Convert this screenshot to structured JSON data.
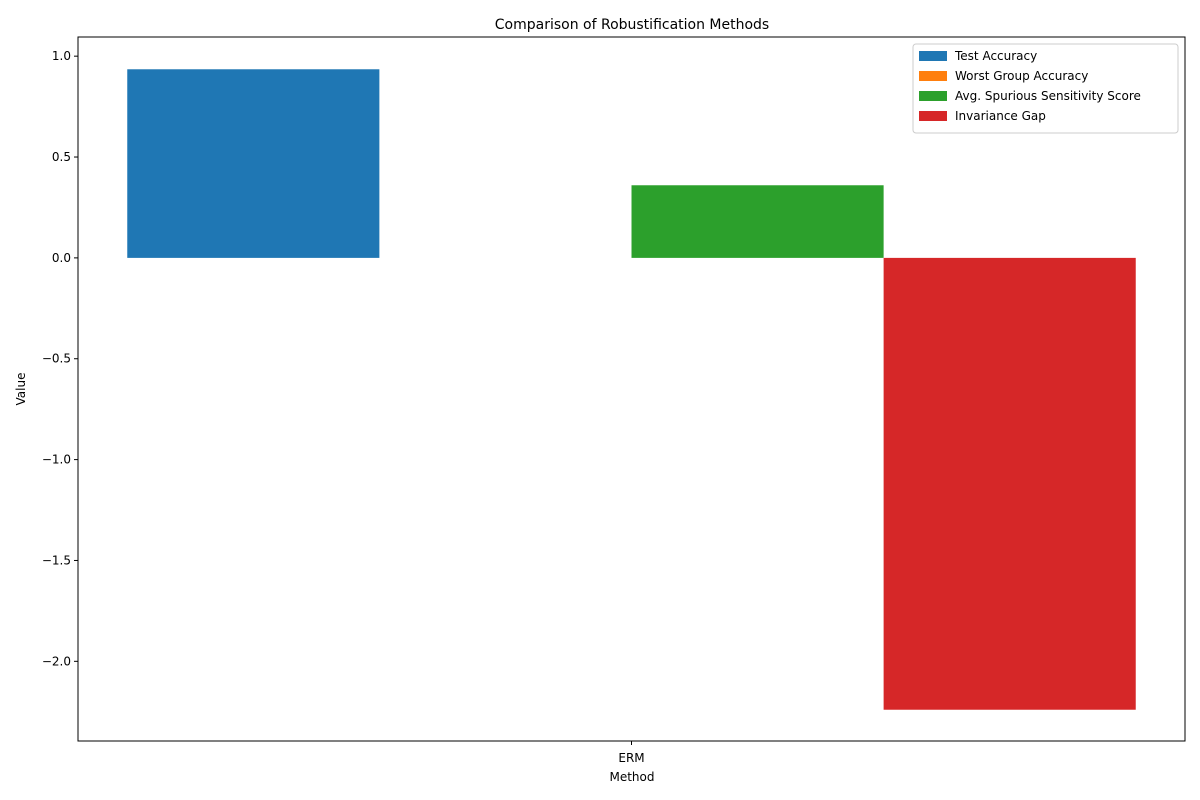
{
  "chart_data": {
    "type": "bar",
    "title": "Comparison of Robustification Methods",
    "xlabel": "Method",
    "ylabel": "Value",
    "categories": [
      "ERM"
    ],
    "series": [
      {
        "name": "Test Accuracy",
        "values": [
          0.935
        ],
        "color": "#1f77b4"
      },
      {
        "name": "Worst Group Accuracy",
        "values": [
          0.0
        ],
        "color": "#ff7f0e"
      },
      {
        "name": "Avg. Spurious Sensitivity Score",
        "values": [
          0.36
        ],
        "color": "#2ca02c"
      },
      {
        "name": "Invariance Gap",
        "values": [
          -2.24
        ],
        "color": "#d62728"
      }
    ],
    "ylim": [
      -2.395,
      1.095
    ],
    "yticks": [
      -2.0,
      -1.5,
      -1.0,
      -0.5,
      0.0,
      0.5,
      1.0
    ],
    "ytick_labels": [
      "−2.0",
      "−1.5",
      "−1.0",
      "−0.5",
      "0.0",
      "0.5",
      "1.0"
    ],
    "grid": false,
    "legend_position": "top-right"
  }
}
